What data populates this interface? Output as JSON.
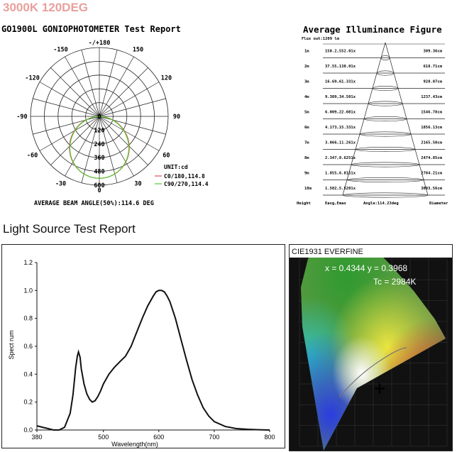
{
  "header": {
    "title": "3000K 120DEG",
    "gonio_title": "GO1900L GONIOPHOTOMETER Test Report",
    "illum_title": "Average Illuminance Figure",
    "light_source_title": "Light Source Test Report"
  },
  "chart_data": [
    {
      "type": "polar",
      "title": "GO1900L GONIOPHOTOMETER Test Report",
      "angle_labels": [
        "-/+180",
        "-150",
        "150",
        "-120",
        "120",
        "-90",
        "90",
        "-60",
        "60",
        "-30",
        "30",
        "0"
      ],
      "radial_labels": [
        "0",
        "120",
        "240",
        "360",
        "480",
        "600"
      ],
      "unit": "UNIT:cd",
      "legend": [
        {
          "name": "C0/180,114.8",
          "color": "#e0505a"
        },
        {
          "name": "C90/270,114.4",
          "color": "#55cc33"
        }
      ],
      "rmax": 600,
      "peak": 540,
      "beam_angle_text": "AVERAGE BEAM ANGLE(50%):114.6 DEG"
    },
    {
      "type": "table",
      "title": "Average Illuminance Figure",
      "flux": "Flux out:1209 lm",
      "columns": [
        "Height",
        "Eavg,Emax",
        "Angle:114.23deg",
        "Diameter"
      ],
      "rows": [
        {
          "h": "1m",
          "e": "150.2,552.01x",
          "d": "309.36cm"
        },
        {
          "h": "2m",
          "e": "37.55,138.01x",
          "d": "618.71cm"
        },
        {
          "h": "3m",
          "e": "16.69,61.331x",
          "d": "928.07cm"
        },
        {
          "h": "4m",
          "e": "9.389,34.501x",
          "d": "1237.43cm"
        },
        {
          "h": "5m",
          "e": "6.009,22.081x",
          "d": "1546.78cm"
        },
        {
          "h": "6m",
          "e": "4.173,15.331x",
          "d": "1856.13cm"
        },
        {
          "h": "7m",
          "e": "3.066,11.261x",
          "d": "2165.50cm"
        },
        {
          "h": "8m",
          "e": "2.347,8.6251x",
          "d": "2474.85cm"
        },
        {
          "h": "9m",
          "e": "1.855,6.8151x",
          "d": "2784.21cm"
        },
        {
          "h": "10m",
          "e": "1.502,5.5201x",
          "d": "3093.56cm"
        }
      ]
    },
    {
      "type": "line",
      "xlabel": "Wavelength(nm)",
      "ylabel": "Spect rum",
      "xlim": [
        380,
        800
      ],
      "ylim": [
        0,
        1.2
      ],
      "xticks": [
        "380",
        "500",
        "600",
        "700",
        "800"
      ],
      "yticks": [
        "0.0",
        "0.2",
        "0.4",
        "0.6",
        "0.8",
        "1.0",
        "1.2"
      ],
      "x": [
        380,
        390,
        400,
        410,
        420,
        430,
        440,
        445,
        450,
        453,
        455,
        458,
        460,
        465,
        470,
        475,
        480,
        485,
        490,
        495,
        500,
        510,
        520,
        530,
        540,
        550,
        560,
        570,
        580,
        590,
        595,
        600,
        605,
        610,
        615,
        620,
        630,
        640,
        650,
        660,
        670,
        680,
        690,
        700,
        720,
        740,
        760,
        780,
        800
      ],
      "y": [
        0.03,
        0.02,
        0.01,
        0.0,
        0.0,
        0.02,
        0.12,
        0.25,
        0.45,
        0.53,
        0.56,
        0.52,
        0.44,
        0.33,
        0.26,
        0.22,
        0.2,
        0.21,
        0.24,
        0.28,
        0.33,
        0.4,
        0.45,
        0.49,
        0.53,
        0.6,
        0.7,
        0.8,
        0.89,
        0.96,
        0.99,
        1.0,
        1.0,
        0.99,
        0.96,
        0.92,
        0.8,
        0.65,
        0.5,
        0.36,
        0.25,
        0.16,
        0.1,
        0.06,
        0.025,
        0.01,
        0.005,
        0.002,
        0.0
      ]
    },
    {
      "type": "scatter",
      "title": "CIE1931 EVERFINE",
      "values": {
        "x": 0.4344,
        "y": 0.3968
      },
      "x_text": "x = 0.4344 y = 0.3968",
      "tc_text": "Tc = 2984K"
    }
  ]
}
